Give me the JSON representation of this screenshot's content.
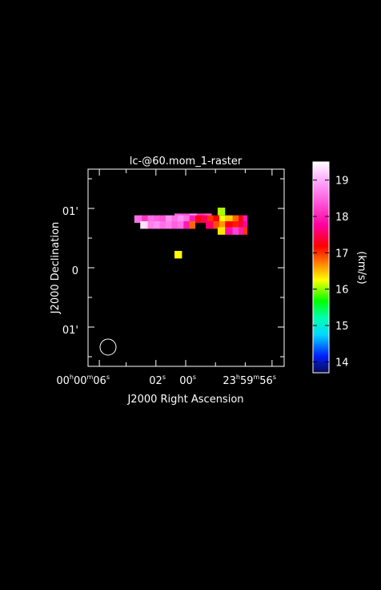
{
  "chart_data": {
    "type": "heatmap",
    "title": "lc-@60.mom_1-raster",
    "xlabel": "J2000 Right Ascension",
    "ylabel": "J2000 Declination",
    "x_ticks": [
      {
        "h": "00",
        "m": "00",
        "s": "06"
      },
      {
        "s": "02"
      },
      {
        "s": "00"
      },
      {
        "h": "23",
        "m": "59",
        "s": "56"
      }
    ],
    "y_ticks": [
      "01'",
      "0",
      "01'"
    ],
    "colorbar": {
      "label": "(km/s)",
      "range": [
        13.7,
        19.5
      ],
      "ticks": [
        14,
        15,
        16,
        17,
        18,
        19
      ]
    },
    "grid": false,
    "beam": "circle",
    "pixel_rows": [
      {
        "dec": 0.95,
        "cells": [
          [
            -2.4,
            16.0
          ]
        ]
      },
      {
        "dec": 0.85,
        "cells": [
          [
            0.5,
            18.5
          ],
          [
            0.0,
            18.4
          ],
          [
            -0.5,
            18.8
          ],
          [
            -1.0,
            18.2
          ],
          [
            -1.5,
            18.4
          ]
        ]
      },
      {
        "dec": 0.82,
        "cells": [
          [
            -3.9,
            18.0
          ],
          [
            -3.6,
            17.3
          ],
          [
            -3.3,
            16.8
          ],
          [
            -2.9,
            16.4
          ],
          [
            -2.4,
            16.2
          ],
          [
            -2.0,
            17.2
          ],
          [
            -1.6,
            17.0
          ],
          [
            -1.2,
            17.5
          ],
          [
            -0.8,
            17.3
          ],
          [
            -0.4,
            18.0
          ],
          [
            0.0,
            18.6
          ],
          [
            0.4,
            18.8
          ],
          [
            0.8,
            18.6
          ],
          [
            1.2,
            18.8
          ],
          [
            1.6,
            18.4
          ],
          [
            2.0,
            18.5
          ],
          [
            2.4,
            18.6
          ],
          [
            2.8,
            18.2
          ],
          [
            3.2,
            18.6
          ]
        ]
      },
      {
        "dec": 0.72,
        "cells": [
          [
            -3.9,
            17.8
          ],
          [
            -3.6,
            17.4
          ],
          [
            -3.3,
            17.1
          ],
          [
            -2.9,
            17.2
          ],
          [
            -2.4,
            16.6
          ],
          [
            -2.0,
            16.9
          ],
          [
            -1.6,
            17.6
          ],
          [
            -0.4,
            16.8
          ],
          [
            0.0,
            18.0
          ],
          [
            0.4,
            18.6
          ],
          [
            0.8,
            18.5
          ],
          [
            1.2,
            18.7
          ],
          [
            1.6,
            18.6
          ],
          [
            2.0,
            18.8
          ],
          [
            2.4,
            18.7
          ],
          [
            2.8,
            19.3
          ]
        ]
      },
      {
        "dec": 0.62,
        "cells": [
          [
            -3.9,
            17.0
          ],
          [
            -3.6,
            18.0
          ],
          [
            -3.3,
            18.3
          ],
          [
            -2.9,
            17.9
          ],
          [
            -2.4,
            16.3
          ]
        ]
      },
      {
        "dec": 0.22,
        "cells": [
          [
            0.5,
            16.2
          ]
        ]
      }
    ]
  }
}
